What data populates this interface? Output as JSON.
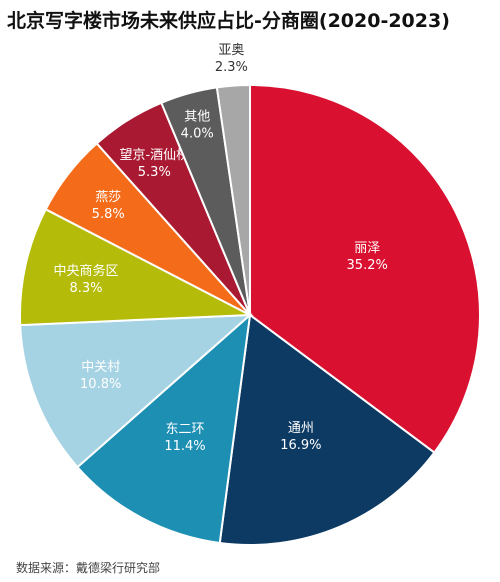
{
  "chart_data": {
    "type": "pie",
    "title": "北京写字楼市场未来供应占比-分商圈(2020-2023)",
    "source": "数据来源：戴德梁行研究部",
    "slices": [
      {
        "name": "丽泽",
        "label": "35.2%",
        "value": 35.2,
        "color": "#d9102f",
        "text_color": "#ffffff"
      },
      {
        "name": "通州",
        "label": "16.9%",
        "value": 16.9,
        "color": "#0d3a63",
        "text_color": "#ffffff"
      },
      {
        "name": "东二环",
        "label": "11.4%",
        "value": 11.4,
        "color": "#1c8fb3",
        "text_color": "#ffffff"
      },
      {
        "name": "中关村",
        "label": "10.8%",
        "value": 10.8,
        "color": "#a6d3e3",
        "text_color": "#ffffff"
      },
      {
        "name": "中央商务区",
        "label": "8.3%",
        "value": 8.3,
        "color": "#b4bb08",
        "text_color": "#ffffff"
      },
      {
        "name": "燕莎",
        "label": "5.8%",
        "value": 5.8,
        "color": "#f46c1a",
        "text_color": "#ffffff"
      },
      {
        "name": "望京-酒仙桥",
        "label": "5.3%",
        "value": 5.3,
        "color": "#a91a32",
        "text_color": "#ffffff"
      },
      {
        "name": "其他",
        "label": "4.0%",
        "value": 4.0,
        "color": "#5c5c5c",
        "text_color": "#ffffff"
      },
      {
        "name": "亚奥",
        "label": "2.3%",
        "value": 2.3,
        "color": "#a7a7a7",
        "text_color": "#333333"
      }
    ]
  }
}
